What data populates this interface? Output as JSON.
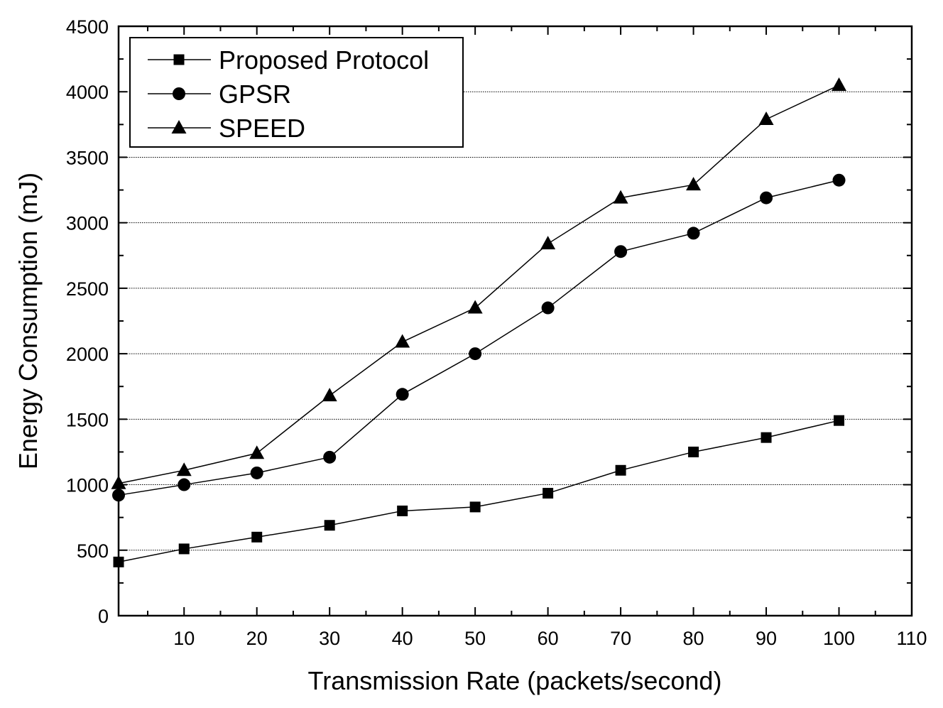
{
  "chart_data": {
    "type": "line",
    "xlabel": "Transmission Rate (packets/second)",
    "ylabel": "Energy Consumption (mJ)",
    "xlim": [
      1,
      110
    ],
    "ylim": [
      0,
      4500
    ],
    "x_ticks": [
      10,
      20,
      30,
      40,
      50,
      60,
      70,
      80,
      90,
      100,
      110
    ],
    "y_ticks": [
      0,
      500,
      1000,
      1500,
      2000,
      2500,
      3000,
      3500,
      4000,
      4500
    ],
    "x_minor_step": 5,
    "y_minor_step": 250,
    "grid": "horizontal dotted at major y ticks",
    "legend_position": "top-left",
    "x": [
      1,
      10,
      20,
      30,
      40,
      50,
      60,
      70,
      80,
      90,
      100
    ],
    "series": [
      {
        "name": "Proposed Protocol",
        "marker": "square",
        "values": [
          410,
          510,
          600,
          690,
          800,
          830,
          935,
          1110,
          1250,
          1360,
          1490
        ]
      },
      {
        "name": "GPSR",
        "marker": "circle",
        "values": [
          920,
          1000,
          1090,
          1210,
          1690,
          2000,
          2350,
          2780,
          2920,
          3190,
          3325
        ]
      },
      {
        "name": "SPEED",
        "marker": "triangle",
        "values": [
          1010,
          1110,
          1240,
          1680,
          2090,
          2350,
          2840,
          3190,
          3290,
          3790,
          4050
        ]
      }
    ]
  }
}
